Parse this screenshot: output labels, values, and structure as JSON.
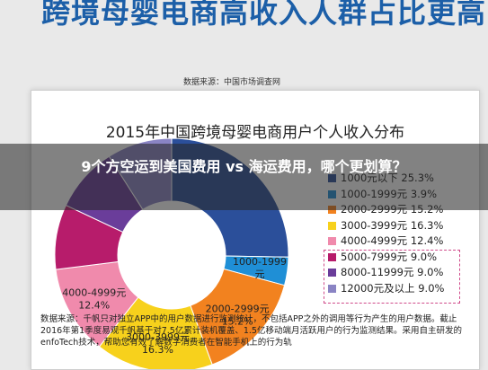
{
  "top_heading": "跨境母婴电商高收入人群占比更高",
  "top_source": "数据来源：中国市场调查网",
  "chart_data": {
    "type": "pie",
    "title": "2015年中国跨境母婴电商用户个人收入分布",
    "slices": [
      {
        "label": "1000元以下",
        "value": 25.3,
        "color": "#2b4f9a"
      },
      {
        "label": "1000-1999元",
        "value": 3.9,
        "color": "#1f8fd6"
      },
      {
        "label": "2000-2999元",
        "value": 15.2,
        "color": "#f2821f"
      },
      {
        "label": "3000-3999元",
        "value": 16.3,
        "color": "#f7d11c"
      },
      {
        "label": "4000-4999元",
        "value": 12.4,
        "color": "#f08aac"
      },
      {
        "label": "5000-7999元",
        "value": 9.0,
        "color": "#b71c6b"
      },
      {
        "label": "8000-11999元",
        "value": 9.0,
        "color": "#6a3d9a"
      },
      {
        "label": "12000元及以上",
        "value": 9.0,
        "color": "#8a84c4"
      }
    ],
    "legend": [
      "1000元以下  25.3%",
      "1000-1999元  3.9%",
      "2000-2999元  15.2%",
      "3000-3999元  16.3%",
      "4000-4999元  12.4%",
      "5000-7999元  9.0%",
      "8000-11999元  9.0%",
      "12000元及以上  9.0%"
    ],
    "data_labels": [
      {
        "l1": "1000-1999",
        "l2": "元"
      },
      {
        "l1": "2000-2999元",
        "l2": "15.2%"
      },
      {
        "l1": "3000-3999元",
        "l2": "16.3%"
      },
      {
        "l1": "4000-4999元",
        "l2": "12.4%"
      }
    ],
    "legend_position": "right"
  },
  "bottom_source": "数据来源：千帆只对独立APP中的用户数据进行监测统计，不包括APP之外的调用等行为产生的用户数据。截止2016年第1季度易观千帆基于对7.5亿累计装机覆盖、1.5亿移动端月活跃用户的行为监测结果。采用自主研发的enfoTech技术，帮助您有效了解数字消费者在智能手机上的行为轨",
  "banner_text": "9个方空运到美国费用 vs 海运费用，哪个更划算？",
  "colors": {
    "heading": "#1c5fa8",
    "banner": "rgba(40,40,40,0.58)",
    "dashed": "#d04a8a"
  }
}
